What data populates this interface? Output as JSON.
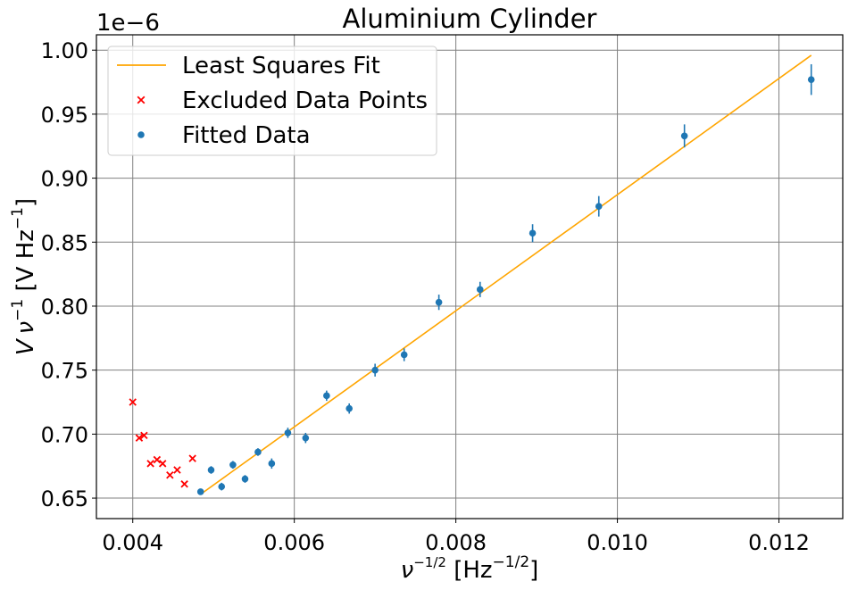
{
  "chart_data": {
    "type": "scatter",
    "title": "Aluminium Cylinder",
    "xlabel": {
      "base": "ν",
      "sup": "−1/2",
      "rest": " [Hz",
      "rest_sup": "−1/2",
      "close": "]"
    },
    "ylabel": {
      "v": "V",
      "nu": "ν",
      "nu_sup": "−1",
      "rest": " [V Hz",
      "rest_sup": "−1",
      "close": "]"
    },
    "offset_text": "1e−6",
    "xlim": [
      0.00355,
      0.01279
    ],
    "ylim": [
      0.634,
      1.012
    ],
    "x_scale_note": "y values multiplied by 1e-6",
    "xticks": [
      0.004,
      0.006,
      0.008,
      0.01,
      0.012
    ],
    "xtick_labels": [
      "0.004",
      "0.006",
      "0.008",
      "0.010",
      "0.012"
    ],
    "yticks": [
      0.65,
      0.7,
      0.75,
      0.8,
      0.85,
      0.9,
      0.95,
      1.0
    ],
    "ytick_labels": [
      "0.65",
      "0.70",
      "0.75",
      "0.80",
      "0.85",
      "0.90",
      "0.95",
      "1.00"
    ],
    "grid": true,
    "legend_placement": "top-left",
    "colors": {
      "fit": "#ffa500",
      "excluded": "#ff0000",
      "fitted": "#1f77b4",
      "grid": "#808080"
    },
    "legend": [
      {
        "label": "Least Squares Fit",
        "kind": "line"
      },
      {
        "label": "Excluded Data Points",
        "kind": "x"
      },
      {
        "label": "Fitted Data",
        "kind": "dot"
      }
    ],
    "fit_line": {
      "name": "Least Squares Fit",
      "x": [
        0.00484,
        0.0124
      ],
      "y": [
        0.653,
        0.996
      ]
    },
    "excluded_points": {
      "name": "Excluded Data Points",
      "x": [
        0.004,
        0.00408,
        0.00414,
        0.00422,
        0.0043,
        0.00437,
        0.00446,
        0.00455,
        0.00464,
        0.00474
      ],
      "y": [
        0.725,
        0.697,
        0.699,
        0.677,
        0.68,
        0.677,
        0.668,
        0.672,
        0.661,
        0.681
      ]
    },
    "fitted_points": {
      "name": "Fitted Data",
      "x": [
        0.00484,
        0.00497,
        0.0051,
        0.00524,
        0.00539,
        0.00555,
        0.00572,
        0.00592,
        0.00614,
        0.0064,
        0.00668,
        0.007,
        0.00736,
        0.00779,
        0.0083,
        0.00895,
        0.00977,
        0.01083,
        0.0124
      ],
      "y": [
        0.655,
        0.672,
        0.659,
        0.676,
        0.665,
        0.686,
        0.677,
        0.701,
        0.697,
        0.73,
        0.72,
        0.75,
        0.762,
        0.803,
        0.813,
        0.857,
        0.878,
        0.933,
        0.977
      ],
      "yerr": [
        0.002,
        0.003,
        0.003,
        0.003,
        0.003,
        0.003,
        0.004,
        0.004,
        0.004,
        0.004,
        0.004,
        0.005,
        0.005,
        0.006,
        0.006,
        0.007,
        0.008,
        0.009,
        0.012
      ]
    }
  }
}
